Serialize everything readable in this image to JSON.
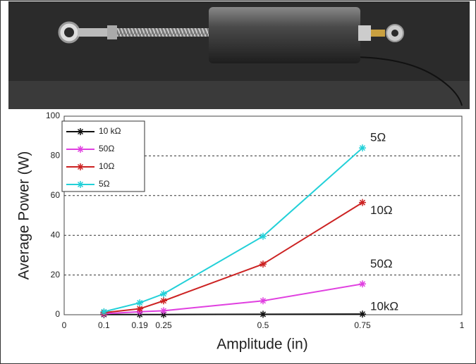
{
  "chart_data": {
    "type": "line",
    "x_label": "Amplitude (in)",
    "y_label": "Average Power (W)",
    "x": [
      0.1,
      0.19,
      0.25,
      0.5,
      0.75
    ],
    "series": [
      {
        "name": "10 kΩ",
        "color": "#111111",
        "values": [
          0.1,
          0.1,
          0.1,
          0.2,
          0.3
        ]
      },
      {
        "name": "50Ω",
        "color": "#e040e0",
        "values": [
          0.5,
          1.5,
          2,
          7,
          15.5
        ]
      },
      {
        "name": "10Ω",
        "color": "#cc2222",
        "values": [
          1,
          3,
          7,
          25.5,
          56.5
        ]
      },
      {
        "name": "5Ω",
        "color": "#22d0d8",
        "values": [
          1.5,
          6,
          10.5,
          39.5,
          84
        ]
      }
    ],
    "annotations": [
      "10kΩ",
      "50Ω",
      "10Ω",
      "5Ω"
    ],
    "xlim": [
      0,
      1
    ],
    "xticks": [
      0,
      0.1,
      0.19,
      0.25,
      0.5,
      0.75,
      1
    ],
    "ylim": [
      0,
      100
    ],
    "yticks": [
      0,
      20,
      40,
      60,
      80,
      100
    ],
    "grid": "y",
    "legend": "upper-left"
  }
}
